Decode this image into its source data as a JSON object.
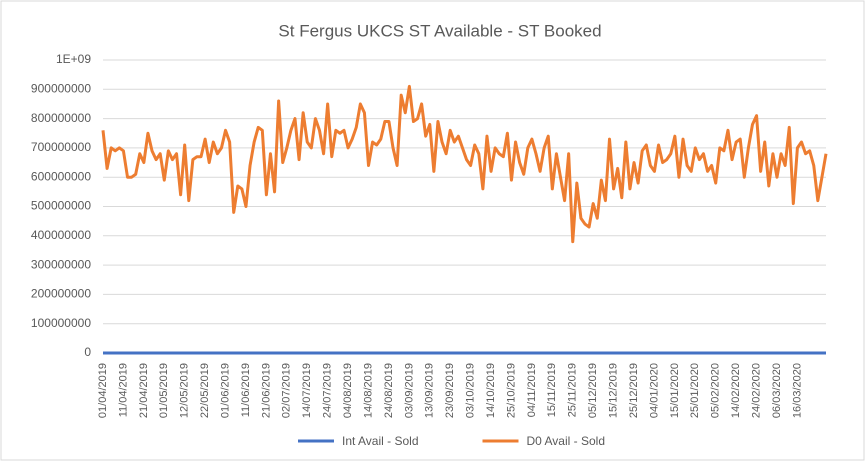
{
  "chart_data": {
    "type": "line",
    "title": "St Fergus UKCS ST Available - ST Booked",
    "categories": [
      "01/04/2019",
      null,
      null,
      null,
      null,
      "11/04/2019",
      null,
      null,
      null,
      null,
      "21/04/2019",
      null,
      null,
      null,
      null,
      "01/05/2019",
      null,
      null,
      null,
      null,
      "12/05/2019",
      null,
      null,
      null,
      null,
      "22/05/2019",
      null,
      null,
      null,
      null,
      "01/06/2019",
      null,
      null,
      null,
      null,
      "11/06/2019",
      null,
      null,
      null,
      null,
      "21/06/2019",
      null,
      null,
      null,
      null,
      "02/07/2019",
      null,
      null,
      null,
      null,
      "14/07/2019",
      null,
      null,
      null,
      null,
      "24/07/2019",
      null,
      null,
      null,
      null,
      "04/08/2019",
      null,
      null,
      null,
      null,
      "14/08/2019",
      null,
      null,
      null,
      null,
      "24/08/2019",
      null,
      null,
      null,
      null,
      "03/09/2019",
      null,
      null,
      null,
      null,
      "13/09/2019",
      null,
      null,
      null,
      null,
      "23/09/2019",
      null,
      null,
      null,
      null,
      "03/10/2019",
      null,
      null,
      null,
      null,
      "14/10/2019",
      null,
      null,
      null,
      null,
      "25/10/2019",
      null,
      null,
      null,
      null,
      "04/11/2019",
      null,
      null,
      null,
      null,
      "15/11/2019",
      null,
      null,
      null,
      null,
      "25/11/2019",
      null,
      null,
      null,
      null,
      "05/12/2019",
      null,
      null,
      null,
      null,
      "15/12/2019",
      null,
      null,
      null,
      null,
      "25/12/2019",
      null,
      null,
      null,
      null,
      "04/01/2020",
      null,
      null,
      null,
      null,
      "15/01/2020",
      null,
      null,
      null,
      null,
      "25/01/2020",
      null,
      null,
      null,
      null,
      "05/02/2020",
      null,
      null,
      null,
      null,
      "14/02/2020",
      null,
      null,
      null,
      null,
      "24/02/2020",
      null,
      null,
      null,
      null,
      "06/03/2020",
      null,
      null,
      null,
      null,
      "16/03/2020",
      null,
      null,
      null,
      null,
      null,
      null,
      null
    ],
    "series": [
      {
        "name": "Int Avail - Sold",
        "color": "#4472c4",
        "values": [
          0,
          0,
          0,
          0,
          0,
          0,
          0,
          0,
          0,
          0,
          0,
          0,
          0,
          0,
          0,
          0,
          0,
          0,
          0,
          0,
          0,
          0,
          0,
          0,
          0,
          0,
          0,
          0,
          0,
          0,
          0,
          0,
          0,
          0,
          0,
          0,
          0,
          0,
          0,
          0,
          0,
          0,
          0,
          0,
          0,
          0,
          0,
          0,
          0,
          0,
          0,
          0,
          0,
          0,
          0,
          0,
          0,
          0,
          0,
          0,
          0,
          0,
          0,
          0,
          0,
          0,
          0,
          0,
          0,
          0,
          0,
          0,
          0,
          0,
          0,
          0,
          0,
          0,
          0,
          0,
          0,
          0,
          0,
          0,
          0,
          0,
          0,
          0,
          0,
          0,
          0,
          0,
          0,
          0,
          0,
          0,
          0,
          0,
          0,
          0,
          0,
          0,
          0,
          0,
          0,
          0,
          0,
          0,
          0,
          0,
          0,
          0,
          0,
          0,
          0,
          0,
          0,
          0,
          0,
          0,
          0,
          0,
          0,
          0,
          0,
          0,
          0,
          0,
          0,
          0,
          0,
          0,
          0,
          0,
          0,
          0,
          0,
          0,
          0,
          0,
          0,
          0,
          0,
          0,
          0,
          0,
          0,
          0,
          0,
          0,
          0,
          0,
          0,
          0,
          0,
          0,
          0,
          0,
          0,
          0,
          0,
          0,
          0,
          0,
          0,
          0,
          0,
          0,
          0,
          0,
          0,
          0,
          0,
          0,
          0,
          0,
          0,
          0
        ]
      },
      {
        "name": "D0 Avail - Sold",
        "color": "#ed7d31",
        "values": [
          760000000.0,
          630000000.0,
          700000000.0,
          690000000.0,
          700000000.0,
          690000000.0,
          600000000.0,
          600000000.0,
          610000000.0,
          680000000.0,
          650000000.0,
          750000000.0,
          690000000.0,
          660000000.0,
          680000000.0,
          590000000.0,
          690000000.0,
          660000000.0,
          680000000.0,
          540000000.0,
          710000000.0,
          520000000.0,
          660000000.0,
          670000000.0,
          670000000.0,
          730000000.0,
          650000000.0,
          720000000.0,
          680000000.0,
          700000000.0,
          760000000.0,
          720000000.0,
          480000000.0,
          570000000.0,
          560000000.0,
          500000000.0,
          640000000.0,
          720000000.0,
          770000000.0,
          760000000.0,
          540000000.0,
          680000000.0,
          550000000.0,
          860000000.0,
          650000000.0,
          700000000.0,
          760000000.0,
          800000000.0,
          660000000.0,
          820000000.0,
          720000000.0,
          700000000.0,
          800000000.0,
          760000000.0,
          680000000.0,
          850000000.0,
          670000000.0,
          760000000.0,
          750000000.0,
          760000000.0,
          700000000.0,
          730000000.0,
          770000000.0,
          850000000.0,
          820000000.0,
          640000000.0,
          720000000.0,
          710000000.0,
          730000000.0,
          790000000.0,
          790000000.0,
          700000000.0,
          640000000.0,
          880000000.0,
          820000000.0,
          910000000.0,
          790000000.0,
          800000000.0,
          850000000.0,
          740000000.0,
          780000000.0,
          620000000.0,
          790000000.0,
          720000000.0,
          680000000.0,
          760000000.0,
          720000000.0,
          740000000.0,
          700000000.0,
          660000000.0,
          640000000.0,
          710000000.0,
          680000000.0,
          560000000.0,
          740000000.0,
          620000000.0,
          700000000.0,
          680000000.0,
          670000000.0,
          750000000.0,
          590000000.0,
          720000000.0,
          650000000.0,
          610000000.0,
          700000000.0,
          730000000.0,
          680000000.0,
          620000000.0,
          700000000.0,
          740000000.0,
          560000000.0,
          680000000.0,
          600000000.0,
          520000000.0,
          680000000.0,
          380000000.0,
          580000000.0,
          460000000.0,
          440000000.0,
          430000000.0,
          510000000.0,
          460000000.0,
          590000000.0,
          520000000.0,
          730000000.0,
          560000000.0,
          630000000.0,
          530000000.0,
          720000000.0,
          560000000.0,
          650000000.0,
          580000000.0,
          690000000.0,
          710000000.0,
          640000000.0,
          620000000.0,
          710000000.0,
          650000000.0,
          660000000.0,
          680000000.0,
          740000000.0,
          600000000.0,
          730000000.0,
          640000000.0,
          620000000.0,
          700000000.0,
          660000000.0,
          680000000.0,
          620000000.0,
          640000000.0,
          580000000.0,
          700000000.0,
          690000000.0,
          760000000.0,
          660000000.0,
          720000000.0,
          730000000.0,
          600000000.0,
          700000000.0,
          780000000.0,
          810000000.0,
          620000000.0,
          720000000.0,
          570000000.0,
          680000000.0,
          600000000.0,
          680000000.0,
          640000000.0,
          770000000.0,
          510000000.0,
          700000000.0,
          720000000.0,
          680000000.0,
          690000000.0,
          640000000.0,
          520000000.0,
          600000000.0,
          680000000.0
        ]
      }
    ],
    "ylim": [
      0,
      1000000000
    ],
    "yticks": [
      0,
      100000000,
      200000000,
      300000000,
      400000000,
      500000000,
      600000000,
      700000000,
      800000000,
      900000000,
      {
        "value": 1000000000,
        "label": "1E+09"
      }
    ],
    "grid": true,
    "legend": "bottom"
  }
}
